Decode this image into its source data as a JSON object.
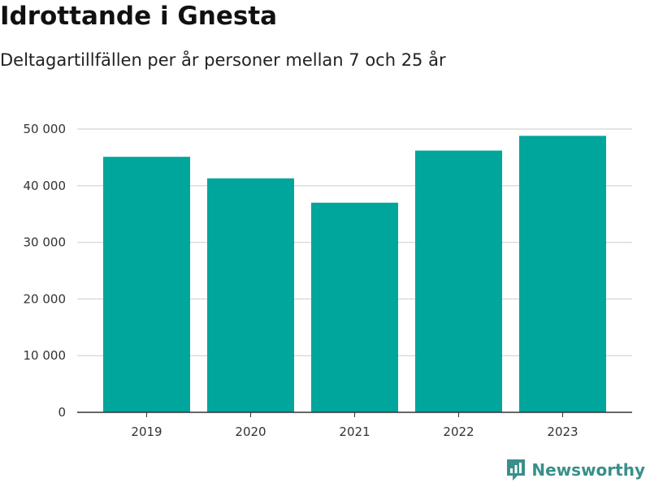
{
  "header": {
    "title": "Idrottande i Gnesta",
    "subtitle": "Deltagartillfällen per år personer mellan 7 och 25 år"
  },
  "brand": {
    "name": "Newsworthy",
    "color": "#3a8f8a",
    "icon": "bar-chart-logo-icon"
  },
  "colors": {
    "bar": "#00a59b",
    "grid": "#dcdcdc",
    "axis": "#333333"
  },
  "chart_data": {
    "type": "bar",
    "categories": [
      "2019",
      "2020",
      "2021",
      "2022",
      "2023"
    ],
    "values": [
      45100,
      41300,
      37000,
      46200,
      48800
    ],
    "title": "Idrottande i Gnesta",
    "subtitle": "Deltagartillfällen per år personer mellan 7 och 25 år",
    "xlabel": "",
    "ylabel": "",
    "ylim": [
      0,
      50000
    ],
    "yticks": [
      0,
      10000,
      20000,
      30000,
      40000,
      50000
    ],
    "ytick_labels": [
      "0",
      "10 000",
      "20 000",
      "30 000",
      "40 000",
      "50 000"
    ],
    "grid": true,
    "legend": "none"
  }
}
